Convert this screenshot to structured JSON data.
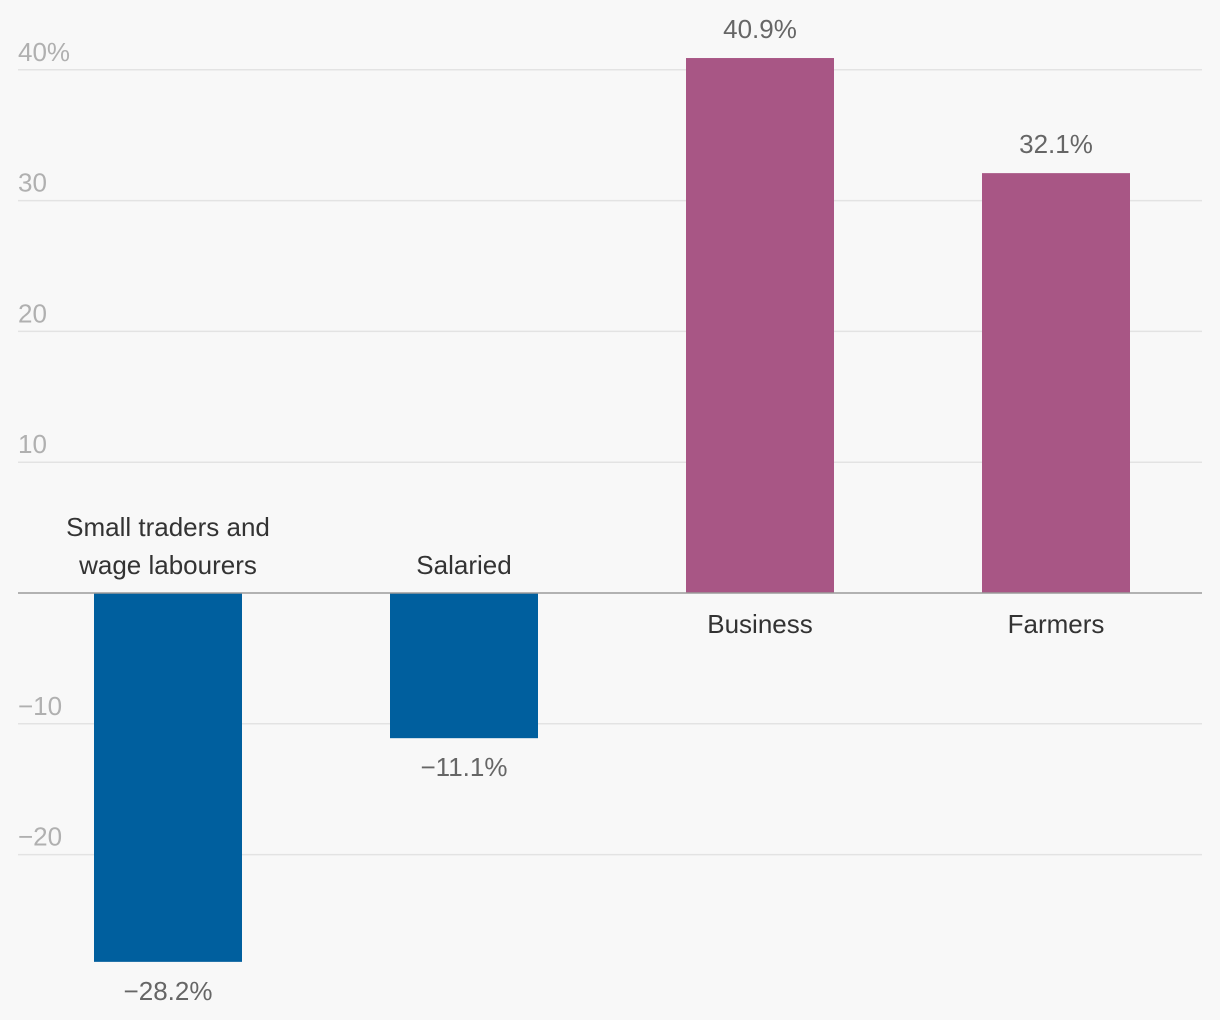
{
  "chart_data": {
    "type": "bar",
    "title": "",
    "xlabel": "",
    "ylabel": "",
    "ylim": [
      -30,
      42
    ],
    "ytick_values": [
      -20,
      -10,
      10,
      20,
      30,
      40
    ],
    "ytick_labels": [
      "−20",
      "−10",
      "10",
      "20",
      "30",
      "40%"
    ],
    "grid": true,
    "categories": [
      [
        "Small traders and",
        "wage labourers"
      ],
      [
        "Salaried"
      ],
      [
        "Business"
      ],
      [
        "Farmers"
      ]
    ],
    "values": [
      -28.2,
      -11.1,
      40.9,
      32.1
    ],
    "value_labels": [
      "−28.2%",
      "−11.1%",
      "40.9%",
      "32.1%"
    ],
    "colors": {
      "negative": "#005f9e",
      "positive": "#a85685"
    }
  }
}
